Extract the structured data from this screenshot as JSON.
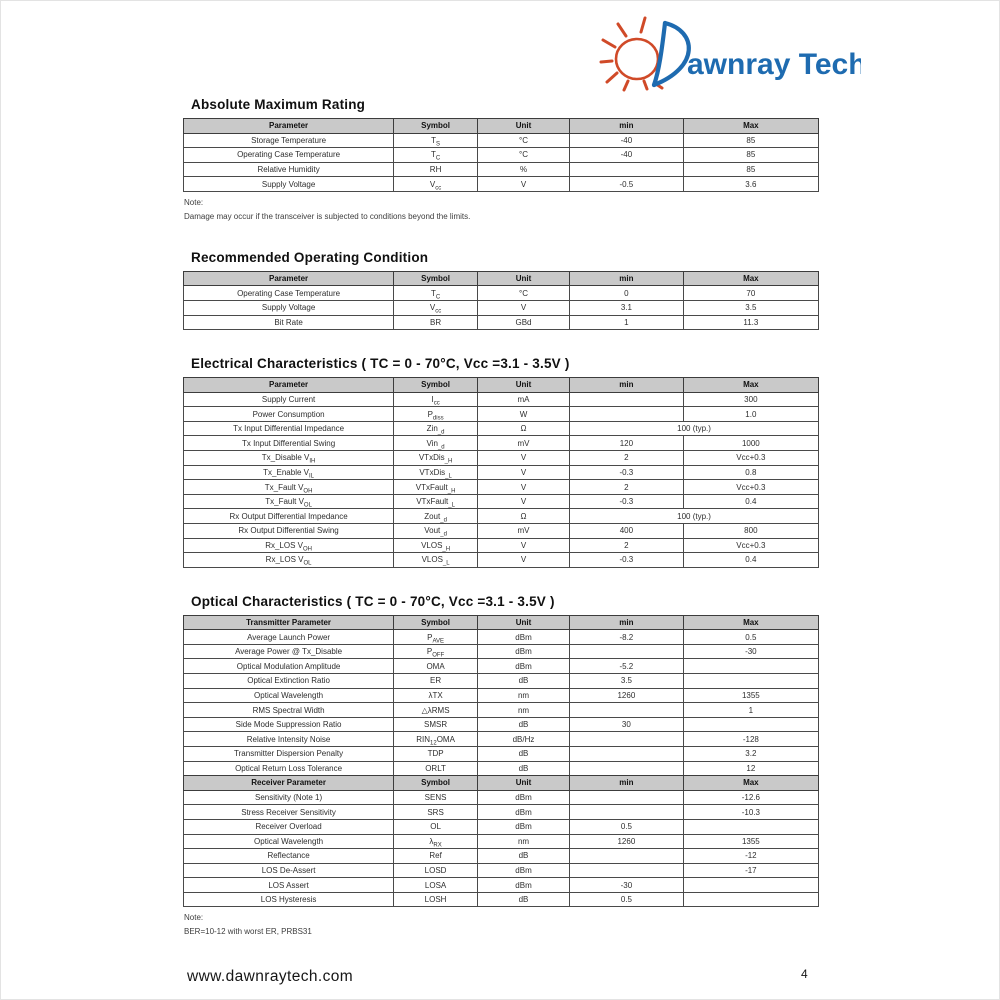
{
  "logo": {
    "brand": "Dawnray Tech",
    "display_tail": "awnray Tech",
    "blue": "#1e6bb0",
    "red": "#d04a28"
  },
  "colors": {
    "header_bg": "#c9c9c9",
    "table_border": "#4a4a4a",
    "text": "#2e2e2e"
  },
  "col_widths": [
    "33.1%",
    "13.2%",
    "14.5%",
    "17.9%",
    "21.3%"
  ],
  "sections": [
    {
      "title": "Absolute Maximum Rating",
      "tables": [
        {
          "header": [
            "Parameter",
            "Symbol",
            "Unit",
            "min",
            "Max"
          ],
          "rows": [
            [
              "Storage Temperature",
              "T~S~",
              "°C",
              "-40",
              "85"
            ],
            [
              "Operating Case Temperature",
              "T~C~",
              "°C",
              "-40",
              "85"
            ],
            [
              "Relative Humidity",
              "RH",
              "%",
              "",
              "85"
            ],
            [
              "Supply Voltage",
              "V~cc~",
              "V",
              "-0.5",
              "3.6"
            ]
          ]
        }
      ],
      "notes": [
        "Note:",
        "Damage may occur if the transceiver is subjected to conditions beyond the limits."
      ]
    },
    {
      "title": "Recommended Operating Condition",
      "tables": [
        {
          "header": [
            "Parameter",
            "Symbol",
            "Unit",
            "min",
            "Max"
          ],
          "rows": [
            [
              "Operating Case Temperature",
              "T~C~",
              "°C",
              "0",
              "70"
            ],
            [
              "Supply Voltage",
              "V~cc~",
              "V",
              "3.1",
              "3.5"
            ],
            [
              "Bit Rate",
              "BR",
              "GBd",
              "1",
              "11.3"
            ]
          ]
        }
      ],
      "notes": []
    },
    {
      "title": "Electrical Characteristics ( TC = 0 - 70°C, Vcc =3.1 - 3.5V )",
      "tables": [
        {
          "header": [
            "Parameter",
            "Symbol",
            "Unit",
            "min",
            "Max"
          ],
          "rows": [
            [
              "Supply Current",
              "I~cc~",
              "mA",
              "",
              "300"
            ],
            [
              "Power Consumption",
              "P~diss~",
              "W",
              "",
              "1.0"
            ],
            [
              "Tx Input Differential Impedance",
              "Zin~_d~",
              "Ω",
              {
                "text": "100 (typ.)",
                "colspan": 2
              }
            ],
            [
              "Tx Input Differential Swing",
              "Vin~_d~",
              "mV",
              "120",
              "1000"
            ],
            [
              "Tx_Disable V~IH~",
              "VTxDis~_H~",
              "V",
              "2",
              "Vcc+0.3"
            ],
            [
              "Tx_Enable V~IL~",
              "VTxDis~_L~",
              "V",
              "-0.3",
              "0.8"
            ],
            [
              "Tx_Fault V~OH~",
              "VTxFault~_H~",
              "V",
              "2",
              "Vcc+0.3"
            ],
            [
              "Tx_Fault V~OL~",
              "VTxFault~_L~",
              "V",
              "-0.3",
              "0.4"
            ],
            [
              "Rx Output Differential Impedance",
              "Zout~_d~",
              "Ω",
              {
                "text": "100 (typ.)",
                "colspan": 2
              }
            ],
            [
              "Rx Output Differential Swing",
              "Vout~_d~",
              "mV",
              "400",
              "800"
            ],
            [
              "Rx_LOS V~OH~",
              "VLOS~_H~",
              "V",
              "2",
              "Vcc+0.3"
            ],
            [
              "Rx_LOS V~OL~",
              "VLOS~_L~",
              "V",
              "-0.3",
              "0.4"
            ]
          ]
        }
      ],
      "notes": []
    },
    {
      "title": "Optical Characteristics ( TC = 0 - 70°C, Vcc =3.1 - 3.5V )",
      "tables": [
        {
          "header": [
            "Transmitter Parameter",
            "Symbol",
            "Unit",
            "min",
            "Max"
          ],
          "rows": [
            [
              "Average Launch Power",
              "P~AVE~",
              "dBm",
              "-8.2",
              "0.5"
            ],
            [
              "Average Power @ Tx_Disable",
              "P~OFF~",
              "dBm",
              "",
              "-30"
            ],
            [
              "Optical Modulation Amplitude",
              "OMA",
              "dBm",
              "-5.2",
              ""
            ],
            [
              "Optical Extinction Ratio",
              "ER",
              "dB",
              "3.5",
              ""
            ],
            [
              "Optical Wavelength",
              "λTX",
              "nm",
              "1260",
              "1355"
            ],
            [
              "RMS Spectral Width",
              "△λRMS",
              "nm",
              "",
              "1"
            ],
            [
              "Side Mode Suppression Ratio",
              "SMSR",
              "dB",
              "30",
              ""
            ],
            [
              "Relative Intensity Noise",
              "RIN~12~OMA",
              "dB/Hz",
              "",
              "-128"
            ],
            [
              "Transmitter Dispersion Penalty",
              "TDP",
              "dB",
              "",
              "3.2"
            ],
            [
              "Optical Return Loss Tolerance",
              "ORLT",
              "dB",
              "",
              "12"
            ]
          ]
        },
        {
          "header": [
            "Receiver Parameter",
            "Symbol",
            "Unit",
            "min",
            "Max"
          ],
          "rows": [
            [
              "Sensitivity (Note 1)",
              "SENS",
              "dBm",
              "",
              "-12.6"
            ],
            [
              "Stress Receiver Sensitivity",
              "SRS",
              "dBm",
              "",
              "-10.3"
            ],
            [
              "Receiver Overload",
              "OL",
              "dBm",
              "0.5",
              ""
            ],
            [
              "Optical Wavelength",
              "λ~RX~",
              "nm",
              "1260",
              "1355"
            ],
            [
              "Reflectance",
              "Ref",
              "dB",
              "",
              "-12"
            ],
            [
              "LOS De-Assert",
              "LOSD",
              "dBm",
              "",
              "-17"
            ],
            [
              "LOS Assert",
              "LOSA",
              "dBm",
              "-30",
              ""
            ],
            [
              "LOS Hysteresis",
              "LOSH",
              "dB",
              "0.5",
              ""
            ]
          ]
        }
      ],
      "notes": [
        "Note:",
        "BER=10-12 with worst ER, PRBS31"
      ]
    }
  ],
  "footer": {
    "website": "www.dawnraytech.com",
    "page_number": "4"
  }
}
